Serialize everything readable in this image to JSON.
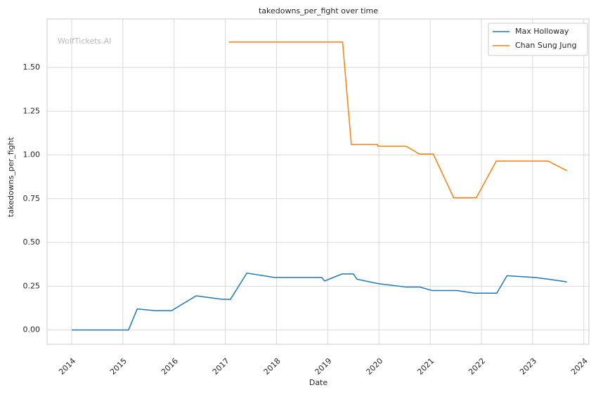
{
  "chart_data": {
    "type": "line",
    "title": "takedowns_per_fight over time",
    "xlabel": "Date",
    "ylabel": "takedowns_per_fight",
    "watermark": "WolfTickets.AI",
    "xlim": [
      2013.52,
      2024.1
    ],
    "xticks": [
      2014,
      2015,
      2016,
      2017,
      2018,
      2019,
      2020,
      2021,
      2022,
      2023,
      2024
    ],
    "ylim": [
      -0.082,
      1.777
    ],
    "yticks": [
      {
        "value": 0,
        "label": "0.00"
      },
      {
        "value": 0.25,
        "label": "0.25"
      },
      {
        "value": 0.5,
        "label": "0.50"
      },
      {
        "value": 0.75,
        "label": "0.75"
      },
      {
        "value": 1,
        "label": "1.00"
      },
      {
        "value": 1.25,
        "label": "1.25"
      },
      {
        "value": 1.5,
        "label": "1.50"
      }
    ],
    "grid": true,
    "legend": "upper right",
    "series": [
      {
        "name": "Max Holloway",
        "color": "#1f77b4",
        "x": [
          2014.0,
          2015.11,
          2015.28,
          2015.63,
          2015.95,
          2016.43,
          2016.94,
          2017.1,
          2017.42,
          2017.96,
          2018.88,
          2018.94,
          2019.28,
          2019.5,
          2019.57,
          2019.98,
          2020.53,
          2020.8,
          2021.04,
          2021.52,
          2021.87,
          2022.3,
          2022.5,
          2023.04,
          2023.31,
          2023.67
        ],
        "values": [
          0,
          0,
          0.12,
          0.11,
          0.11,
          0.195,
          0.175,
          0.175,
          0.325,
          0.3,
          0.3,
          0.28,
          0.32,
          0.32,
          0.29,
          0.265,
          0.245,
          0.245,
          0.225,
          0.225,
          0.21,
          0.21,
          0.31,
          0.3,
          0.29,
          0.275
        ]
      },
      {
        "name": "Chan Sung Jung",
        "color": "#ff7f0e",
        "x": [
          2017.07,
          2019.29,
          2019.46,
          2019.97,
          2019.98,
          2020.53,
          2020.79,
          2021.06,
          2021.46,
          2021.9,
          2022.29,
          2023.3,
          2023.67
        ],
        "values": [
          1.645,
          1.645,
          1.06,
          1.06,
          1.05,
          1.05,
          1.005,
          1.005,
          0.755,
          0.755,
          0.965,
          0.965,
          0.91
        ]
      }
    ]
  }
}
